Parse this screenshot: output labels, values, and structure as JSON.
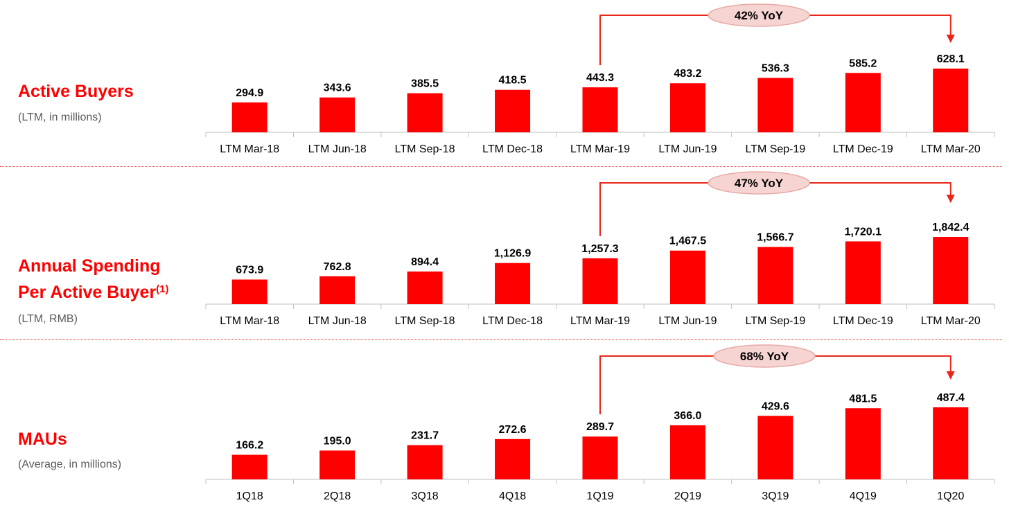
{
  "colors": {
    "bar": "#ff0000",
    "arrow": "#e8261a",
    "pill_fill": "#f6d4d2",
    "pill_stroke": "#e8a9a4",
    "title": "#ff0000",
    "subtitle": "#595959"
  },
  "panels": [
    {
      "title_lines": [
        "Active Buyers"
      ],
      "title_sup": "",
      "subtitle": "(LTM, in millions)",
      "yoy_label": "42% YoY"
    },
    {
      "title_lines": [
        "Annual Spending",
        "Per Active Buyer"
      ],
      "title_sup": "(1)",
      "subtitle": "(LTM, RMB)",
      "yoy_label": "47% YoY"
    },
    {
      "title_lines": [
        "MAUs"
      ],
      "title_sup": "",
      "subtitle": "(Average, in millions)",
      "yoy_label": "68% YoY"
    }
  ],
  "chart_data": [
    {
      "type": "bar",
      "title": "Active Buyers",
      "categories": [
        "LTM Mar-18",
        "LTM Jun-18",
        "LTM Sep-18",
        "LTM Dec-18",
        "LTM Mar-19",
        "LTM Jun-19",
        "LTM Sep-19",
        "LTM Dec-19",
        "LTM Mar-20"
      ],
      "values": [
        294.9,
        343.6,
        385.5,
        418.5,
        443.3,
        483.2,
        536.3,
        585.2,
        628.1
      ],
      "value_labels": [
        "294.9",
        "343.6",
        "385.5",
        "418.5",
        "443.3",
        "483.2",
        "536.3",
        "585.2",
        "628.1"
      ],
      "annotation": {
        "text": "42% YoY",
        "from": "LTM Mar-19",
        "to": "LTM Mar-20"
      }
    },
    {
      "type": "bar",
      "title": "Annual Spending Per Active Buyer",
      "categories": [
        "LTM Mar-18",
        "LTM Jun-18",
        "LTM Sep-18",
        "LTM Dec-18",
        "LTM Mar-19",
        "LTM Jun-19",
        "LTM Sep-19",
        "LTM Dec-19",
        "LTM Mar-20"
      ],
      "values": [
        673.9,
        762.8,
        894.4,
        1126.9,
        1257.3,
        1467.5,
        1566.7,
        1720.1,
        1842.4
      ],
      "value_labels": [
        "673.9",
        "762.8",
        "894.4",
        "1,126.9",
        "1,257.3",
        "1,467.5",
        "1,566.7",
        "1,720.1",
        "1,842.4"
      ],
      "annotation": {
        "text": "47% YoY",
        "from": "LTM Mar-19",
        "to": "LTM Mar-20"
      }
    },
    {
      "type": "bar",
      "title": "MAUs",
      "categories": [
        "1Q18",
        "2Q18",
        "3Q18",
        "4Q18",
        "1Q19",
        "2Q19",
        "3Q19",
        "4Q19",
        "1Q20"
      ],
      "values": [
        166.2,
        195.0,
        231.7,
        272.6,
        289.7,
        366.0,
        429.6,
        481.5,
        487.4
      ],
      "value_labels": [
        "166.2",
        "195.0",
        "231.7",
        "272.6",
        "289.7",
        "366.0",
        "429.6",
        "481.5",
        "487.4"
      ],
      "annotation": {
        "text": "68% YoY",
        "from": "1Q19",
        "to": "1Q20"
      }
    }
  ]
}
